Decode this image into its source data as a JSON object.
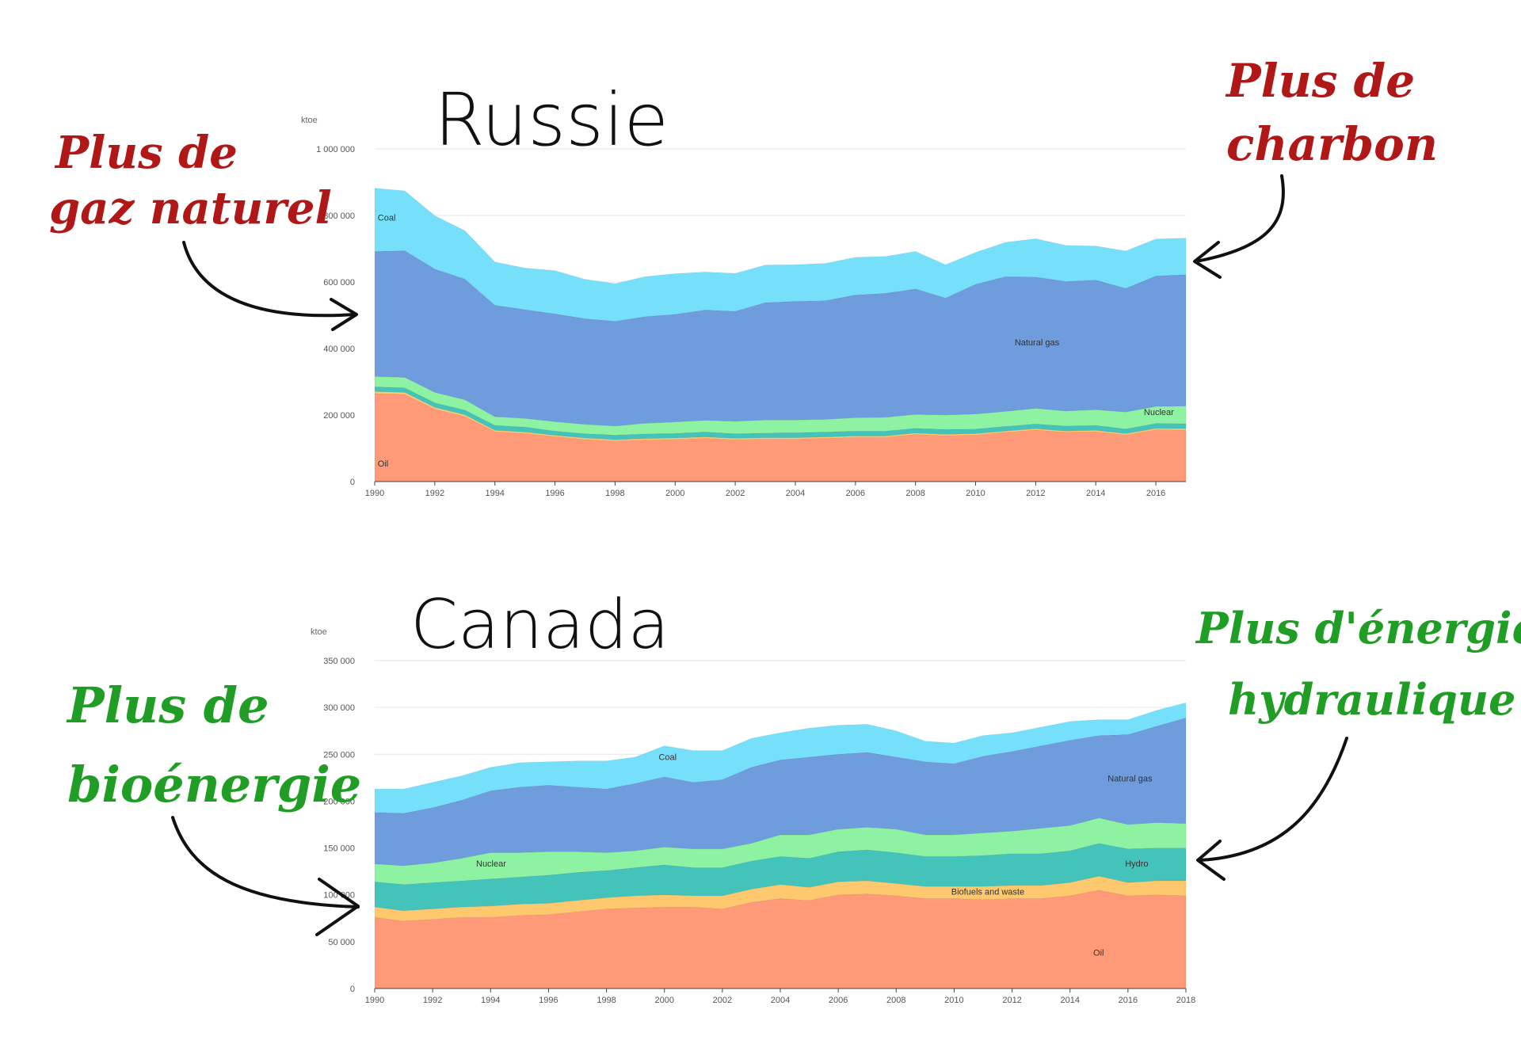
{
  "annotations": {
    "russia_left": [
      "Plus de",
      "gaz naturel"
    ],
    "russia_right": [
      "Plus de",
      "charbon"
    ],
    "canada_left": [
      "Plus de",
      "bioénergie"
    ],
    "canada_right": [
      "Plus d'énergie",
      "hydraulique"
    ]
  },
  "colors": {
    "oil": "#fe9a78",
    "biofuels": "#fec96e",
    "hydro": "#43c3b9",
    "nuclear": "#8ef2a3",
    "natural_gas": "#6e9cdd",
    "coal": "#76e0fb",
    "note_red": "#b01818",
    "note_green": "#1f9d24"
  },
  "chart_data": [
    {
      "type": "area",
      "stacked": true,
      "title": "Russie",
      "ylabel": "ktoe",
      "ylim": [
        0,
        1000000
      ],
      "yticks": [
        0,
        200000,
        400000,
        600000,
        800000,
        1000000
      ],
      "ytick_labels": [
        "0",
        "200 000",
        "400 000",
        "600 000",
        "800 000",
        "1 000 000"
      ],
      "xlim": [
        1990,
        2017
      ],
      "xticks": [
        1990,
        1992,
        1994,
        1996,
        1998,
        2000,
        2002,
        2004,
        2006,
        2008,
        2010,
        2012,
        2014,
        2016
      ],
      "x": [
        1990,
        1991,
        1992,
        1993,
        1994,
        1995,
        1996,
        1997,
        1998,
        1999,
        2000,
        2001,
        2002,
        2003,
        2004,
        2005,
        2006,
        2007,
        2008,
        2009,
        2010,
        2011,
        2012,
        2013,
        2014,
        2015,
        2016,
        2017
      ],
      "series": [
        {
          "name": "Oil",
          "color_key": "oil",
          "values": [
            265000,
            262000,
            218000,
            196000,
            150000,
            145000,
            135000,
            127000,
            122000,
            125000,
            127000,
            130000,
            126000,
            128000,
            128000,
            130000,
            133000,
            133000,
            142000,
            138000,
            140000,
            148000,
            155000,
            148000,
            150000,
            140000,
            156000,
            155000
          ]
        },
        {
          "name": "",
          "color_key": "biofuels",
          "values": [
            6000,
            6000,
            5000,
            5000,
            4000,
            4000,
            4000,
            4000,
            4000,
            4000,
            4000,
            4000,
            4000,
            4000,
            4000,
            4000,
            4000,
            4000,
            4000,
            4000,
            4000,
            4000,
            4000,
            4000,
            4000,
            4000,
            4000,
            4000
          ]
        },
        {
          "name": "",
          "color_key": "hydro",
          "values": [
            14000,
            14000,
            14000,
            14000,
            15000,
            15000,
            13000,
            13000,
            14000,
            14000,
            14000,
            15000,
            14000,
            14000,
            15000,
            15000,
            15000,
            15000,
            14000,
            15000,
            14000,
            14000,
            14000,
            15000,
            15000,
            14000,
            15000,
            15000
          ]
        },
        {
          "name": "Nuclear",
          "color_key": "nuclear",
          "values": [
            31000,
            31000,
            31000,
            31000,
            26000,
            26000,
            28000,
            28000,
            27000,
            32000,
            34000,
            35000,
            37000,
            39000,
            38000,
            38000,
            40000,
            41000,
            42000,
            43000,
            45000,
            45000,
            47000,
            45000,
            47000,
            51000,
            51000,
            53000
          ]
        },
        {
          "name": "Natural gas",
          "color_key": "natural_gas",
          "values": [
            376000,
            381000,
            371000,
            363000,
            335000,
            327000,
            324000,
            318000,
            315000,
            321000,
            324000,
            332000,
            331000,
            353000,
            357000,
            357000,
            369000,
            373000,
            377000,
            352000,
            390000,
            405000,
            395000,
            390000,
            390000,
            372000,
            392000,
            395000
          ]
        },
        {
          "name": "Coal",
          "color_key": "coal",
          "values": [
            190000,
            180000,
            160000,
            145000,
            130000,
            125000,
            130000,
            118000,
            113000,
            120000,
            122000,
            114000,
            114000,
            113000,
            110000,
            112000,
            113000,
            111000,
            113000,
            100000,
            96000,
            103000,
            115000,
            108000,
            102000,
            112000,
            111000,
            110000
          ]
        }
      ]
    },
    {
      "type": "area",
      "stacked": true,
      "title": "Canada",
      "ylabel": "ktoe",
      "ylim": [
        0,
        350000
      ],
      "yticks": [
        0,
        50000,
        100000,
        150000,
        200000,
        250000,
        300000,
        350000
      ],
      "ytick_labels": [
        "0",
        "50 000",
        "100 000",
        "150 000",
        "200 000",
        "250 000",
        "300 000",
        "350 000"
      ],
      "xlim": [
        1990,
        2018
      ],
      "xticks": [
        1990,
        1992,
        1994,
        1996,
        1998,
        2000,
        2002,
        2004,
        2006,
        2008,
        2010,
        2012,
        2014,
        2016,
        2018
      ],
      "x": [
        1990,
        1991,
        1992,
        1993,
        1994,
        1995,
        1996,
        1997,
        1998,
        1999,
        2000,
        2001,
        2002,
        2003,
        2004,
        2005,
        2006,
        2007,
        2008,
        2009,
        2010,
        2011,
        2012,
        2013,
        2014,
        2015,
        2016,
        2017,
        2018
      ],
      "series": [
        {
          "name": "Oil",
          "color_key": "oil",
          "values": [
            76000,
            72000,
            74000,
            76000,
            76000,
            78000,
            79000,
            82000,
            85000,
            86000,
            87000,
            87000,
            85000,
            92000,
            96000,
            94000,
            100000,
            101000,
            99000,
            96000,
            96000,
            95000,
            96000,
            96000,
            99000,
            105000,
            99000,
            100000,
            99000
          ]
        },
        {
          "name": "Biofuels and waste",
          "color_key": "biofuels",
          "values": [
            11000,
            11000,
            11000,
            11000,
            12000,
            12000,
            12000,
            12000,
            12000,
            13000,
            13000,
            12000,
            14000,
            14000,
            15000,
            14000,
            14000,
            14000,
            13000,
            13000,
            13000,
            14000,
            14000,
            14000,
            14000,
            15000,
            14000,
            15000,
            16000
          ]
        },
        {
          "name": "Hydro",
          "color_key": "hydro",
          "values": [
            27000,
            28000,
            28000,
            28000,
            29000,
            29000,
            30000,
            30000,
            29000,
            30000,
            32000,
            30000,
            30000,
            30000,
            30000,
            31000,
            32000,
            33000,
            33000,
            32000,
            32000,
            33000,
            34000,
            34000,
            34000,
            35000,
            36000,
            35000,
            35000
          ]
        },
        {
          "name": "Nuclear",
          "color_key": "nuclear",
          "values": [
            19000,
            20000,
            21000,
            24000,
            28000,
            26000,
            25000,
            22000,
            19000,
            18000,
            19000,
            20000,
            20000,
            19000,
            23000,
            25000,
            24000,
            24000,
            25000,
            23000,
            23000,
            24000,
            24000,
            27000,
            27000,
            27000,
            26000,
            27000,
            26000
          ]
        },
        {
          "name": "Natural gas",
          "color_key": "natural_gas",
          "values": [
            55000,
            56000,
            59000,
            62000,
            66000,
            70000,
            71000,
            69000,
            68000,
            72000,
            75000,
            71000,
            74000,
            81000,
            80000,
            83000,
            80000,
            80000,
            77000,
            78000,
            76000,
            82000,
            85000,
            88000,
            91000,
            88000,
            96000,
            103000,
            113000
          ]
        },
        {
          "name": "Coal",
          "color_key": "coal",
          "values": [
            25000,
            26000,
            27000,
            26000,
            25000,
            26000,
            25000,
            28000,
            30000,
            28000,
            33000,
            34000,
            31000,
            31000,
            29000,
            31000,
            31000,
            30000,
            28000,
            22000,
            22000,
            22000,
            20000,
            20000,
            20000,
            17000,
            16000,
            17000,
            16000
          ]
        }
      ]
    }
  ]
}
